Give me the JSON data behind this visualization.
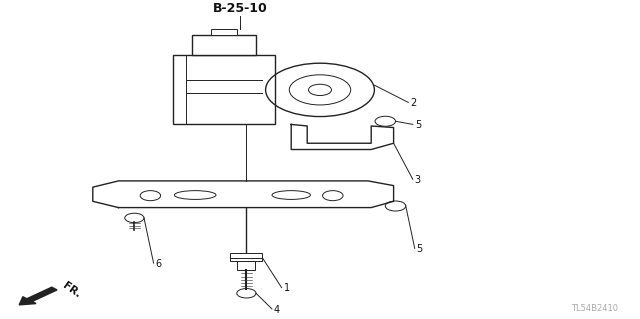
{
  "bg_color": "#ffffff",
  "line_color": "#222222",
  "label_color": "#111111",
  "title": "B-25-10",
  "watermark": "TL54B2410",
  "fr_label": "FR."
}
